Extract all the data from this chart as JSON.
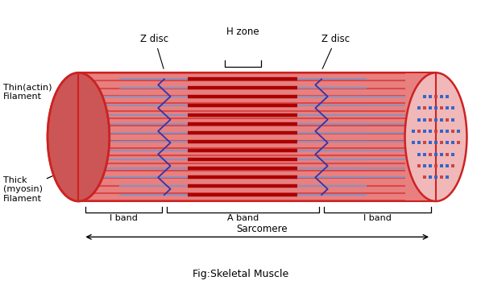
{
  "fig_width": 5.97,
  "fig_height": 3.64,
  "bg_color": "#ffffff",
  "muscle_color": "#e88080",
  "muscle_dark": "#cc2222",
  "muscle_stripe": "#cc1111",
  "myosin_color": "#aa0000",
  "actin_color": "#9090bb",
  "zdisc_color": "#3333aa",
  "dot_blue": "#3366cc",
  "dot_red": "#cc4444",
  "cross_color": "#f0c0c0",
  "title": "Fig:Skeletal Muscle",
  "labels": {
    "thin_filament": "Thin(actin)\nFilament",
    "thick_filament": "Thick\n(myosin)\nFilament",
    "z_disc_left": "Z disc",
    "z_disc_right": "Z disc",
    "h_zone": "H zone",
    "i_band_left": "I band",
    "a_band": "A band",
    "i_band_right": "I band",
    "sarcomere": "Sarcomere"
  }
}
